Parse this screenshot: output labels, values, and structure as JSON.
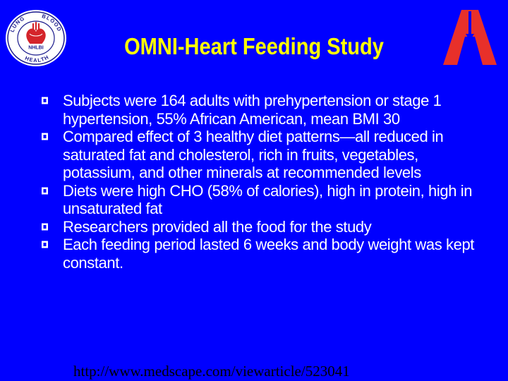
{
  "slide": {
    "title": "OMNI-Heart Feeding Study",
    "background_color": "#0000ff",
    "title_color": "#ffff00",
    "text_color": "#ffffff"
  },
  "logos": {
    "nhlbi": {
      "icon": "nhlbi-seal-icon",
      "center_text": "NHLBI",
      "ring_top_left": "LUNG",
      "ring_top_right": "BLOOD",
      "ring_bottom": "HEALTH"
    },
    "aha": {
      "icon": "aha-torch-logo-icon",
      "color": "#e8302a"
    }
  },
  "bullets": [
    "Subjects were 164 adults with prehypertension or stage 1 hypertension, 55% African American, mean BMI 30",
    "Compared effect of 3 healthy diet patterns—all reduced in saturated fat and cholesterol, rich in fruits, vegetables, potassium, and other minerals at recommended levels",
    "Diets were high CHO (58% of calories), high in protein, high in unsaturated fat",
    "Researchers provided all the food for the study",
    "Each feeding period lasted 6 weeks and body weight was kept constant."
  ],
  "footer": {
    "url": "http://www.medscape.com/viewarticle/523041"
  }
}
